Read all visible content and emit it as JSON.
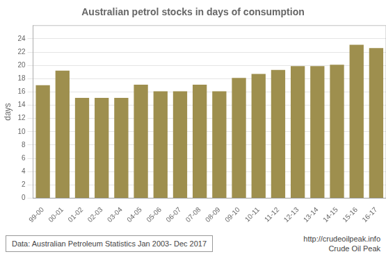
{
  "chart_data": {
    "type": "bar",
    "title": "Australian petrol stocks in days of consumption",
    "ylabel": "days",
    "categories": [
      "99-00",
      "00-01",
      "01-02",
      "02-03",
      "03-04",
      "04-05",
      "05-06",
      "06-07",
      "07-08",
      "08-09",
      "09-10",
      "10-11",
      "11-12",
      "12-13",
      "13-14",
      "14-15",
      "15-16",
      "16-17"
    ],
    "values": [
      17.0,
      19.2,
      15.1,
      15.1,
      15.1,
      17.1,
      16.1,
      16.1,
      17.1,
      16.1,
      18.1,
      18.7,
      19.3,
      19.9,
      19.9,
      20.1,
      23.1,
      22.6
    ],
    "color": "#9e8f4e",
    "ylim": [
      0,
      26
    ],
    "yticks": [
      0,
      2,
      4,
      6,
      8,
      10,
      12,
      14,
      16,
      18,
      20,
      22,
      24
    ],
    "grid": true,
    "annotations": [
      "Data: Australian Petroleum Statistics Jan 2003- Dec 2017",
      "http://crudeoilpeak.info",
      "Crude Oil Peak"
    ]
  }
}
